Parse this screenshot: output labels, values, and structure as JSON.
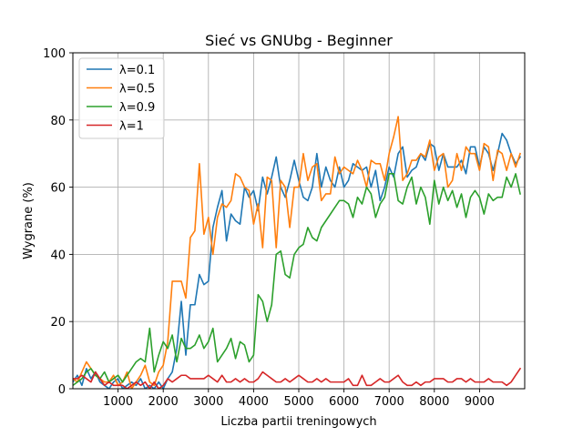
{
  "chart_data": {
    "type": "line",
    "title": "Sieć vs GNUbg - Beginner",
    "xlabel": "Liczba partii treningowych",
    "ylabel": "Wygrane (%)",
    "xlim": [
      0,
      10000
    ],
    "ylim": [
      0,
      100
    ],
    "xticks": [
      1000,
      2000,
      3000,
      4000,
      5000,
      6000,
      7000,
      8000,
      9000
    ],
    "yticks": [
      0,
      20,
      40,
      60,
      80,
      100
    ],
    "grid": true,
    "legend_position": "top-left",
    "x": [
      0,
      100,
      200,
      300,
      400,
      500,
      600,
      700,
      800,
      900,
      1000,
      1100,
      1200,
      1300,
      1400,
      1500,
      1600,
      1700,
      1800,
      1900,
      2000,
      2100,
      2200,
      2300,
      2400,
      2500,
      2600,
      2700,
      2800,
      2900,
      3000,
      3100,
      3200,
      3300,
      3400,
      3500,
      3600,
      3700,
      3800,
      3900,
      4000,
      4100,
      4200,
      4300,
      4400,
      4500,
      4600,
      4700,
      4800,
      4900,
      5000,
      5100,
      5200,
      5300,
      5400,
      5500,
      5600,
      5700,
      5800,
      5900,
      6000,
      6100,
      6200,
      6300,
      6400,
      6500,
      6600,
      6700,
      6800,
      6900,
      7000,
      7100,
      7200,
      7300,
      7400,
      7500,
      7600,
      7700,
      7800,
      7900,
      8000,
      8100,
      8200,
      8300,
      8400,
      8500,
      8600,
      8700,
      8800,
      8900,
      9000,
      9100,
      9200,
      9300,
      9400,
      9500,
      9600,
      9700,
      9800,
      9900
    ],
    "series": [
      {
        "name": "λ=0.1",
        "color": "#1f77b4",
        "values": [
          2,
          4,
          1,
          6,
          3,
          5,
          2,
          1,
          0,
          2,
          3,
          0,
          1,
          2,
          1,
          3,
          0,
          1,
          0,
          2,
          0,
          3,
          5,
          12,
          26,
          10,
          25,
          25,
          34,
          31,
          32,
          48,
          54,
          59,
          44,
          52,
          50,
          49,
          60,
          57,
          59,
          53,
          63,
          58,
          63,
          69,
          60,
          57,
          62,
          68,
          62,
          57,
          56,
          60,
          70,
          60,
          66,
          62,
          60,
          66,
          60,
          62,
          67,
          66,
          65,
          66,
          60,
          65,
          56,
          60,
          66,
          63,
          70,
          72,
          63,
          65,
          66,
          70,
          68,
          73,
          72,
          65,
          70,
          66,
          66,
          66,
          68,
          64,
          72,
          72,
          66,
          72,
          70,
          65,
          70,
          76,
          74,
          70,
          67,
          69
        ]
      },
      {
        "name": "λ=0.5",
        "color": "#ff7f0e",
        "values": [
          3,
          2,
          5,
          8,
          6,
          4,
          3,
          2,
          2,
          4,
          1,
          2,
          5,
          0,
          2,
          4,
          7,
          2,
          1,
          5,
          7,
          14,
          32,
          32,
          32,
          27,
          45,
          47,
          67,
          46,
          51,
          40,
          51,
          55,
          54,
          56,
          64,
          63,
          60,
          59,
          49,
          55,
          42,
          63,
          62,
          42,
          62,
          60,
          48,
          60,
          60,
          70,
          62,
          66,
          67,
          56,
          58,
          58,
          69,
          64,
          66,
          65,
          64,
          68,
          65,
          60,
          68,
          67,
          67,
          62,
          70,
          75,
          81,
          62,
          64,
          68,
          68,
          70,
          69,
          74,
          65,
          69,
          70,
          60,
          62,
          70,
          65,
          72,
          70,
          70,
          65,
          73,
          72,
          62,
          71,
          70,
          65,
          70,
          66,
          70
        ]
      },
      {
        "name": "λ=0.9",
        "color": "#2ca02c",
        "values": [
          1,
          2,
          3,
          5,
          6,
          4,
          3,
          5,
          2,
          3,
          4,
          2,
          4,
          6,
          8,
          9,
          8,
          18,
          5,
          10,
          14,
          12,
          16,
          8,
          15,
          12,
          12,
          13,
          16,
          12,
          14,
          18,
          8,
          10,
          12,
          15,
          9,
          14,
          13,
          8,
          10,
          28,
          26,
          20,
          25,
          40,
          41,
          34,
          33,
          40,
          42,
          43,
          48,
          45,
          44,
          48,
          50,
          52,
          54,
          56,
          56,
          55,
          51,
          57,
          55,
          60,
          58,
          51,
          55,
          57,
          64,
          64,
          56,
          55,
          60,
          63,
          55,
          60,
          57,
          49,
          62,
          55,
          60,
          56,
          59,
          54,
          58,
          51,
          57,
          59,
          57,
          52,
          58,
          56,
          57,
          57,
          63,
          60,
          64,
          58
        ]
      },
      {
        "name": "λ=1",
        "color": "#d62728",
        "values": [
          3,
          3,
          4,
          3,
          2,
          5,
          3,
          1,
          2,
          1,
          1,
          1,
          0,
          1,
          2,
          1,
          2,
          0,
          2,
          0,
          1,
          3,
          2,
          3,
          4,
          4,
          3,
          3,
          3,
          3,
          4,
          3,
          2,
          4,
          2,
          2,
          3,
          2,
          3,
          2,
          2,
          3,
          5,
          4,
          3,
          2,
          2,
          3,
          2,
          3,
          4,
          3,
          2,
          2,
          3,
          2,
          3,
          2,
          2,
          2,
          2,
          3,
          1,
          1,
          4,
          1,
          1,
          2,
          3,
          2,
          2,
          3,
          4,
          2,
          1,
          1,
          2,
          1,
          2,
          2,
          3,
          3,
          3,
          2,
          2,
          3,
          3,
          2,
          3,
          2,
          2,
          2,
          3,
          2,
          2,
          2,
          1,
          2,
          4,
          6
        ]
      }
    ]
  }
}
